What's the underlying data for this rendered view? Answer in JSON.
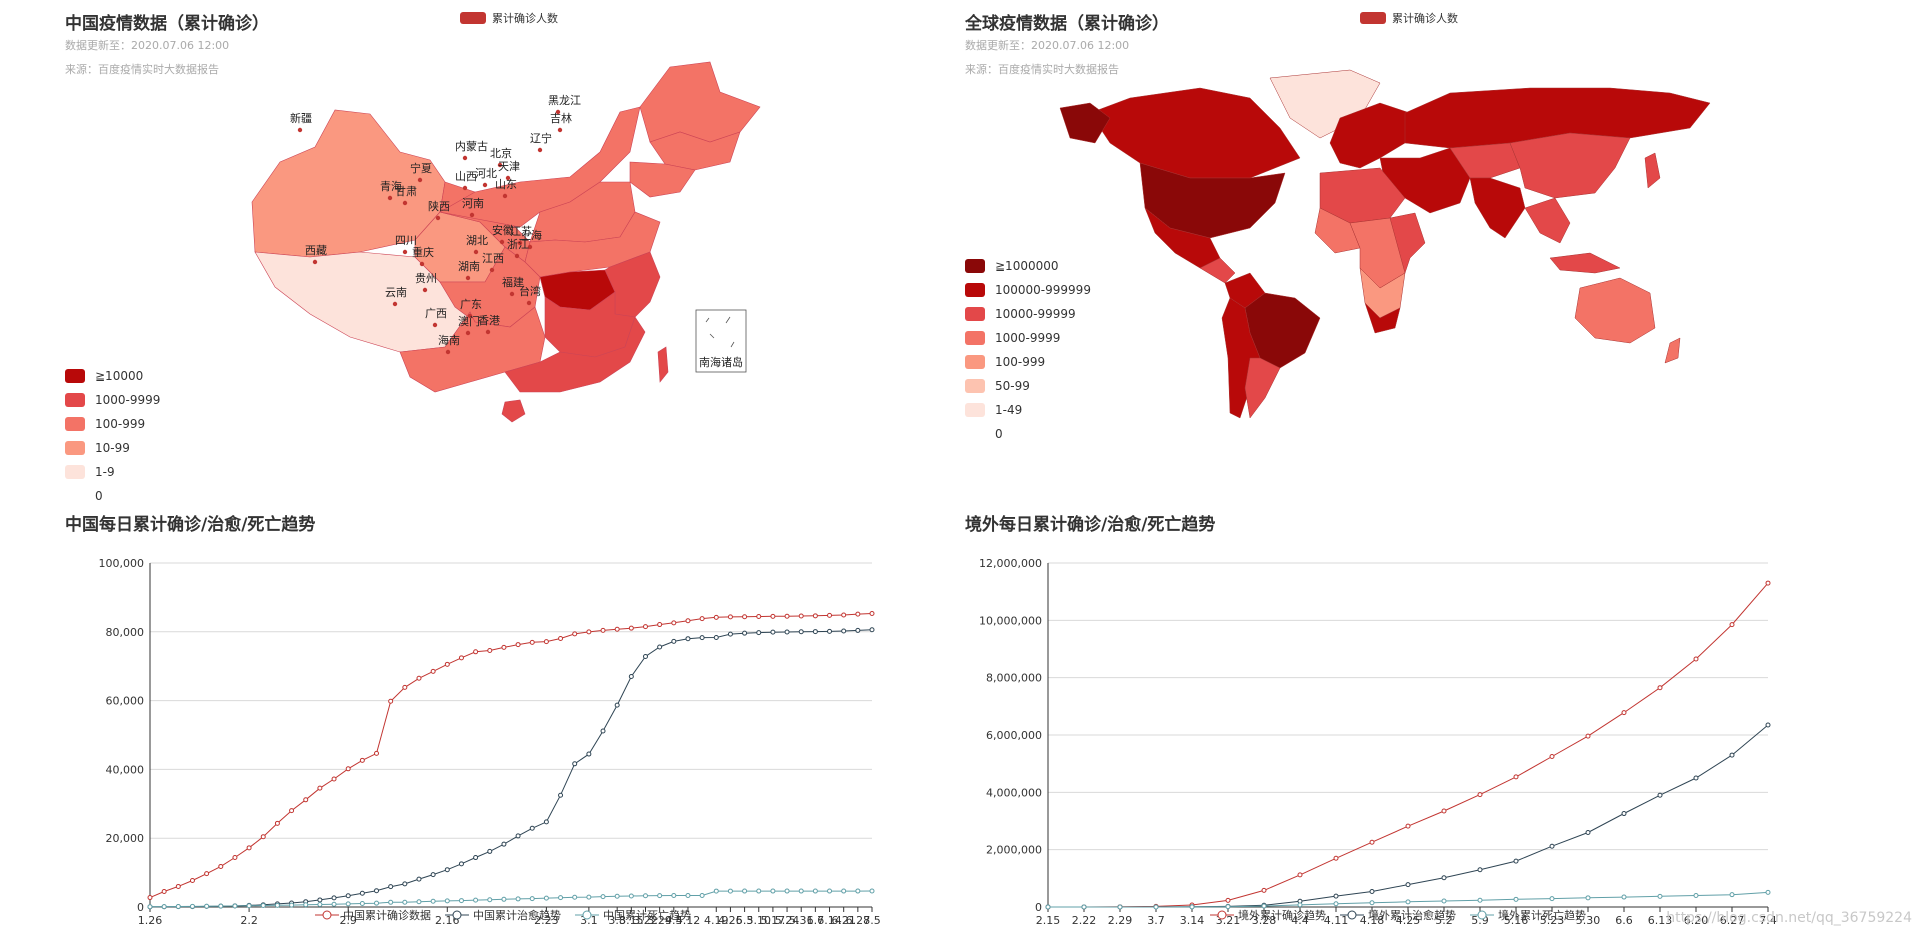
{
  "china_map": {
    "title": "中国疫情数据（累计确诊）",
    "updated": "数据更新至：2020.07.06 12:00",
    "source": "来源：百度疫情实时大数据报告",
    "legend_label": "累计确诊人数",
    "visualmap": [
      {
        "label": "≧10000",
        "color": "#b80909"
      },
      {
        "label": "1000-9999",
        "color": "#e34849"
      },
      {
        "label": "100-999",
        "color": "#f37366"
      },
      {
        "label": "10-99",
        "color": "#fa9880"
      },
      {
        "label": "1-9",
        "color": "#fde3db"
      },
      {
        "label": "0",
        "color": "#ffffff"
      }
    ],
    "provinces": [
      "新疆",
      "内蒙古",
      "黑龙江",
      "吉林",
      "辽宁",
      "北京",
      "天津",
      "宁夏",
      "山西",
      "河北",
      "青海",
      "甘肃",
      "山东",
      "陕西",
      "河南",
      "西藏",
      "四川",
      "重庆",
      "湖北",
      "安徽",
      "江苏",
      "上海",
      "浙江",
      "湖南",
      "江西",
      "云南",
      "贵州",
      "福建",
      "台湾",
      "广西",
      "广东",
      "澳门",
      "香港",
      "海南"
    ],
    "south_sea_label": "南海诸岛"
  },
  "world_map": {
    "title": "全球疫情数据（累计确诊）",
    "updated": "数据更新至：2020.07.06 12:00",
    "source": "来源：百度疫情实时大数据报告",
    "legend_label": "累计确诊人数",
    "visualmap": [
      {
        "label": "≧1000000",
        "color": "#8a0808"
      },
      {
        "label": "100000-999999",
        "color": "#b80909"
      },
      {
        "label": "10000-99999",
        "color": "#e34849"
      },
      {
        "label": "1000-9999",
        "color": "#f37366"
      },
      {
        "label": "100-999",
        "color": "#fa9880"
      },
      {
        "label": "50-99",
        "color": "#fdc3b0"
      },
      {
        "label": "1-49",
        "color": "#fde3db"
      },
      {
        "label": "0",
        "color": "#ffffff"
      }
    ]
  },
  "chart_data": [
    {
      "type": "line",
      "title": "中国每日累计确诊/治愈/死亡趋势",
      "x": [
        "1.26",
        "1.27",
        "1.28",
        "1.29",
        "1.30",
        "1.31",
        "2.1",
        "2.2",
        "2.3",
        "2.4",
        "2.5",
        "2.6",
        "2.7",
        "2.8",
        "2.9",
        "2.10",
        "2.11",
        "2.12",
        "2.13",
        "2.14",
        "2.15",
        "2.16",
        "2.17",
        "2.18",
        "2.19",
        "2.20",
        "2.21",
        "2.22",
        "2.23",
        "2.26",
        "2.29",
        "3.1",
        "3.4",
        "3.8",
        "3.15",
        "3.22",
        "3.29",
        "4.5",
        "4.12",
        "4.17",
        "4.19",
        "4.26",
        "5.3",
        "5.10",
        "5.17",
        "5.24",
        "5.31",
        "6.7",
        "6.14",
        "6.21",
        "6.28",
        "7.5"
      ],
      "tick_labels": [
        "1.26",
        "2.2",
        "2.9",
        "2.16",
        "2.23",
        "3.1",
        "3.8",
        "3.15",
        "3.22",
        "3.29",
        "4.5",
        "4.12",
        "4.19",
        "4.26",
        "5.3",
        "5.10",
        "5.17",
        "5.24",
        "5.31",
        "6.7",
        "6.14",
        "6.21",
        "6.28",
        "7.5"
      ],
      "ylim": [
        0,
        100000
      ],
      "y_ticks": [
        "0",
        "20,000",
        "40,000",
        "60,000",
        "80,000",
        "100,000"
      ],
      "grid": true,
      "legend_position": "bottom",
      "series": [
        {
          "name": "中国累计确诊数据",
          "color": "#c23531",
          "values": [
            2744,
            4515,
            5974,
            7711,
            9692,
            11791,
            14380,
            17205,
            20438,
            24324,
            28018,
            31161,
            34546,
            37198,
            40171,
            42638,
            44653,
            59804,
            63851,
            66492,
            68500,
            70548,
            72436,
            74185,
            74576,
            75465,
            76288,
            76936,
            77150,
            78064,
            79394,
            79968,
            80409,
            80735,
            81053,
            81498,
            82104,
            82602,
            83213,
            83835,
            84201,
            84337,
            84388,
            84450,
            84494,
            84525,
            84597,
            84646,
            84778,
            84891,
            85144,
            85307
          ]
        },
        {
          "name": "中国累计治愈趋势",
          "color": "#2f4554",
          "values": [
            51,
            60,
            103,
            124,
            171,
            243,
            328,
            475,
            632,
            892,
            1153,
            1540,
            2050,
            2649,
            3281,
            3996,
            4740,
            5911,
            6723,
            8096,
            9419,
            10844,
            12552,
            14376,
            16155,
            18264,
            20659,
            22888,
            24734,
            32495,
            41625,
            44462,
            51169,
            58684,
            67017,
            72819,
            75582,
            77207,
            77997,
            78319,
            78346,
            79324,
            79600,
            79765,
            79896,
            79954,
            80025,
            80068,
            80128,
            80244,
            80397,
            80600
          ]
        },
        {
          "name": "中国累计死亡趋势",
          "color": "#61a0a8",
          "values": [
            80,
            106,
            132,
            170,
            213,
            259,
            304,
            361,
            425,
            490,
            563,
            636,
            722,
            811,
            908,
            1016,
            1113,
            1367,
            1380,
            1523,
            1665,
            1770,
            1868,
            2004,
            2118,
            2236,
            2345,
            2442,
            2592,
            2715,
            2835,
            2870,
            3012,
            3119,
            3199,
            3261,
            3304,
            3331,
            3341,
            3342,
            4632,
            4632,
            4633,
            4633,
            4634,
            4634,
            4634,
            4634,
            4634,
            4634,
            4634,
            4641
          ]
        }
      ]
    },
    {
      "type": "line",
      "title": "境外每日累计确诊/治愈/死亡趋势",
      "x": [
        "2.15",
        "2.22",
        "2.29",
        "3.7",
        "3.14",
        "3.21",
        "3.28",
        "4.4",
        "4.11",
        "4.18",
        "4.25",
        "5.2",
        "5.9",
        "5.16",
        "5.23",
        "5.30",
        "6.6",
        "6.13",
        "6.20",
        "6.27",
        "7.4"
      ],
      "tick_labels": [
        "2.15",
        "2.22",
        "2.29",
        "3.7",
        "3.14",
        "3.21",
        "3.28",
        "4.4",
        "4.11",
        "4.18",
        "4.25",
        "5.2",
        "5.9",
        "5.16",
        "5.23",
        "5.30",
        "6.6",
        "6.13",
        "6.20",
        "6.27",
        "7.4"
      ],
      "ylim": [
        0,
        12000000
      ],
      "y_ticks": [
        "0",
        "2,000,000",
        "4,000,000",
        "6,000,000",
        "8,000,000",
        "10,000,000",
        "12,000,000"
      ],
      "grid": true,
      "legend_position": "bottom",
      "series": [
        {
          "name": "境外累计确诊趋势",
          "color": "#c23531",
          "values": [
            600,
            1500,
            6000,
            22000,
            70000,
            230000,
            580000,
            1120000,
            1700000,
            2260000,
            2820000,
            3350000,
            3920000,
            4540000,
            5250000,
            5960000,
            6780000,
            7650000,
            8650000,
            9850000,
            11300000
          ]
        },
        {
          "name": "境外累计治愈趋势",
          "color": "#2f4554",
          "values": [
            200,
            400,
            900,
            3000,
            8000,
            20000,
            60000,
            200000,
            380000,
            540000,
            780000,
            1020000,
            1300000,
            1600000,
            2120000,
            2600000,
            3260000,
            3900000,
            4500000,
            5300000,
            6350000
          ]
        },
        {
          "name": "境外累计死亡趋势",
          "color": "#61a0a8",
          "values": [
            5,
            20,
            100,
            700,
            2500,
            12000,
            33000,
            72000,
            112000,
            148000,
            180000,
            210000,
            236000,
            268000,
            292000,
            320000,
            347000,
            372000,
            400000,
            430000,
            510000
          ]
        }
      ]
    }
  ],
  "watermark": "https://blog.csdn.net/qq_36759224"
}
